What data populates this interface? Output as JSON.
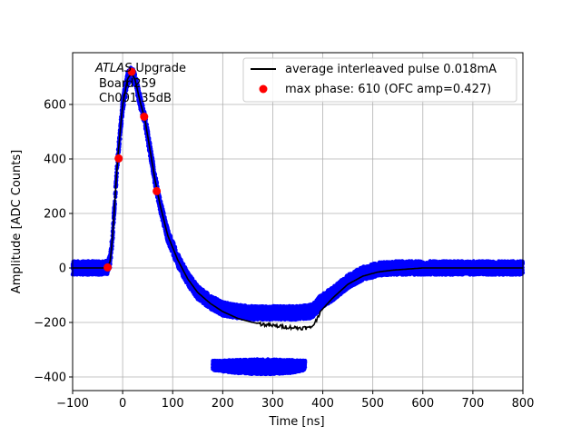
{
  "chart_data": {
    "type": "scatter",
    "title": "",
    "xlabel": "Time [ns]",
    "ylabel": "Amplitude [ADC Counts]",
    "xlim": [
      -100,
      800
    ],
    "ylim": [
      -450,
      790
    ],
    "grid": true,
    "x_ticks": [
      -100,
      0,
      100,
      200,
      300,
      400,
      500,
      600,
      700,
      800
    ],
    "x_tick_labels": [
      "−100",
      "0",
      "100",
      "200",
      "300",
      "400",
      "500",
      "600",
      "700",
      "800"
    ],
    "y_ticks": [
      -400,
      -200,
      0,
      200,
      400,
      600
    ],
    "y_tick_labels": [
      "−400",
      "−200",
      "0",
      "200",
      "400",
      "600"
    ],
    "annotation": {
      "line1_italic": "ATLAS",
      "line1_rest": " Upgrade",
      "line2": "Board259",
      "line3": "Ch001 35dB"
    },
    "legend": {
      "placement": "upper-right",
      "entries": [
        {
          "label": "average interleaved pulse 0.018mA",
          "style": "line",
          "color": "#000000"
        },
        {
          "label": "max phase: 610 (OFC amp=0.427)",
          "style": "marker",
          "color": "#ff0000"
        }
      ]
    },
    "series": [
      {
        "name": "average interleaved pulse 0.018mA",
        "kind": "line",
        "color": "#000000",
        "x": [
          -100,
          -40,
          -30,
          -25,
          -20,
          -10,
          0,
          10,
          18,
          25,
          35,
          45,
          55,
          65,
          75,
          90,
          110,
          130,
          150,
          175,
          200,
          230,
          260,
          290,
          320,
          350,
          375,
          385,
          395,
          420,
          450,
          480,
          510,
          540,
          570,
          600,
          650,
          700,
          800
        ],
        "y": [
          0,
          0,
          3,
          25,
          120,
          400,
          600,
          695,
          715,
          690,
          610,
          540,
          430,
          320,
          230,
          120,
          30,
          -40,
          -90,
          -130,
          -160,
          -185,
          -200,
          -210,
          -215,
          -220,
          -220,
          -200,
          -160,
          -110,
          -60,
          -30,
          -15,
          -8,
          -4,
          0,
          0,
          0,
          0
        ]
      },
      {
        "name": "max phase: 610 (OFC amp=0.427)",
        "kind": "markers",
        "color": "#ff0000",
        "x": [
          -30,
          -8,
          18,
          43,
          68
        ],
        "y": [
          2,
          402,
          720,
          555,
          282
        ]
      },
      {
        "name": "samples",
        "kind": "band",
        "color": "#0000ff",
        "x": [
          -100,
          -40,
          -30,
          -25,
          -20,
          -10,
          0,
          10,
          18,
          25,
          35,
          45,
          55,
          65,
          75,
          90,
          110,
          130,
          150,
          175,
          200,
          230,
          260,
          290,
          320,
          350,
          375,
          385,
          395,
          420,
          450,
          480,
          510,
          540,
          570,
          600,
          650,
          700,
          800
        ],
        "y_low": [
          -25,
          -25,
          -22,
          0,
          95,
          375,
          570,
          670,
          690,
          665,
          585,
          515,
          405,
          295,
          205,
          95,
          5,
          -65,
          -115,
          -150,
          -175,
          -185,
          -190,
          -190,
          -190,
          -190,
          -185,
          -175,
          -150,
          -120,
          -75,
          -45,
          -30,
          -25,
          -25,
          -25,
          -25,
          -25,
          -25
        ],
        "y_high": [
          25,
          25,
          28,
          50,
          145,
          425,
          625,
          720,
          740,
          715,
          635,
          565,
          455,
          345,
          255,
          145,
          55,
          -15,
          -65,
          -100,
          -125,
          -135,
          -140,
          -140,
          -140,
          -140,
          -135,
          -125,
          -100,
          -70,
          -25,
          5,
          20,
          25,
          25,
          25,
          25,
          25,
          25
        ]
      },
      {
        "name": "samples-low-cluster",
        "kind": "band",
        "color": "#0000ff",
        "x": [
          180,
          220,
          260,
          300,
          340,
          365
        ],
        "y_low": [
          -375,
          -385,
          -390,
          -390,
          -385,
          -375
        ],
        "y_high": [
          -340,
          -338,
          -335,
          -335,
          -338,
          -340
        ]
      }
    ]
  }
}
